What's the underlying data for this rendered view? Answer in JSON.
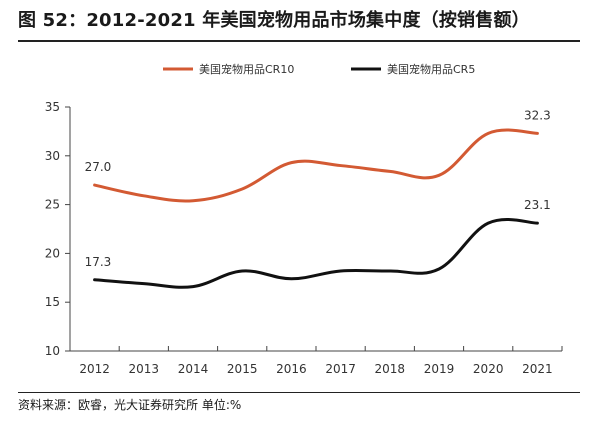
{
  "figure": {
    "title": "图 52：2012-2021 年美国宠物用品市场集中度（按销售额）",
    "source": "资料来源：欧睿，光大证券研究所    单位:%"
  },
  "colors": {
    "series_cr10": "#d35a33",
    "series_cr5": "#111111",
    "axis": "#444444",
    "text": "#333333"
  },
  "chart_data": {
    "type": "line",
    "x": [
      "2012",
      "2013",
      "2014",
      "2015",
      "2016",
      "2017",
      "2018",
      "2019",
      "2020",
      "2021"
    ],
    "series": [
      {
        "name": "美国宠物用品CR10",
        "values": [
          27.0,
          25.9,
          25.4,
          26.6,
          29.3,
          29.0,
          28.4,
          28.0,
          32.3,
          32.3
        ],
        "color": "#d35a33"
      },
      {
        "name": "美国宠物用品CR5",
        "values": [
          17.3,
          16.9,
          16.6,
          18.2,
          17.4,
          18.2,
          18.2,
          18.4,
          23.1,
          23.1
        ],
        "color": "#111111"
      }
    ],
    "ylim": [
      10,
      35
    ],
    "yticks": [
      "10",
      "15",
      "20",
      "25",
      "30",
      "35"
    ],
    "data_labels": [
      {
        "series": 0,
        "index": 0,
        "text": "27.0"
      },
      {
        "series": 0,
        "index": 9,
        "text": "32.3"
      },
      {
        "series": 1,
        "index": 0,
        "text": "17.3"
      },
      {
        "series": 1,
        "index": 9,
        "text": "23.1"
      }
    ],
    "legend_position": "top",
    "grid": false
  }
}
